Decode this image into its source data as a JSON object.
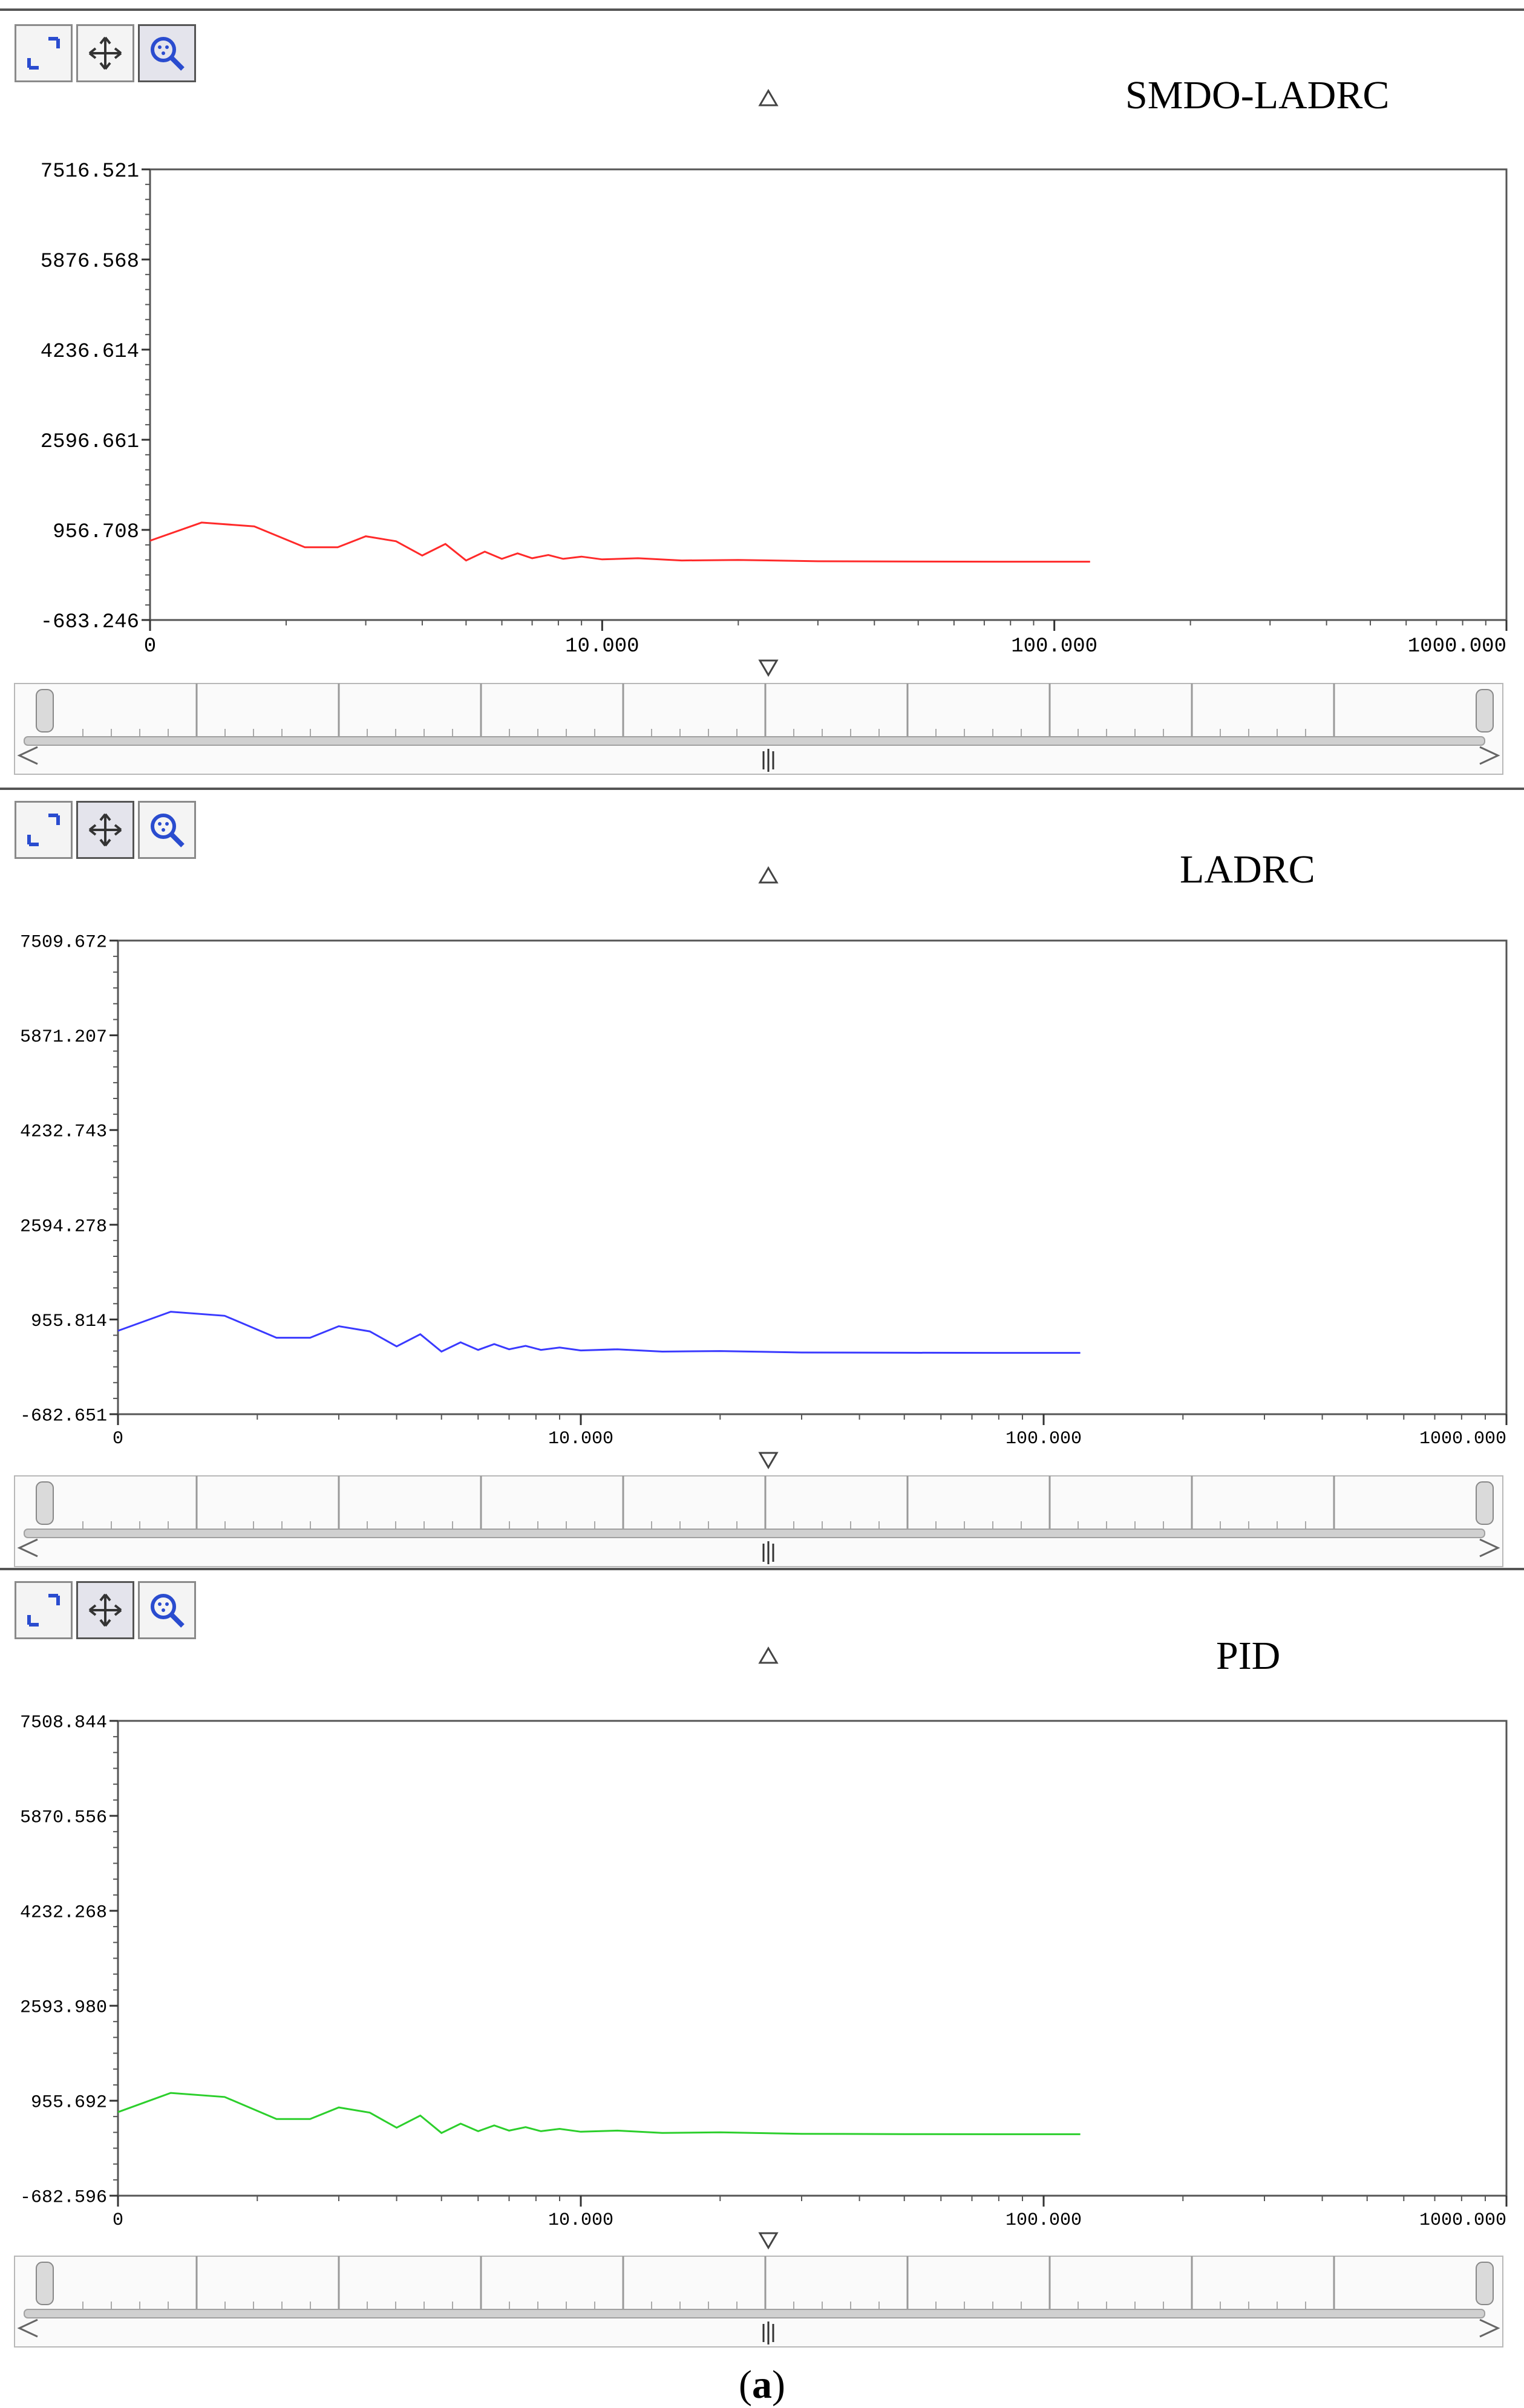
{
  "colors": {
    "smdo": "#ff2a2a",
    "ladrc": "#3a3aff",
    "pid": "#2ccf2c",
    "axis": "#000000",
    "grid": "#888888"
  },
  "panels": [
    {
      "title": "SMDO-LADRC",
      "ytick_labels": [
        "7516.521",
        "5876.568",
        "4236.614",
        "2596.661",
        "956.708",
        "-683.246"
      ],
      "xtick_labels": [
        "0",
        "10.000",
        "100.000",
        "1000.000"
      ],
      "tools": [
        "zoom-box-icon",
        "pan-move-icon",
        "zoom-magnifier-icon"
      ]
    },
    {
      "title": "LADRC",
      "ytick_labels": [
        "7509.672",
        "5871.207",
        "4232.743",
        "2594.278",
        "955.814",
        "-682.651"
      ],
      "xtick_labels": [
        "0",
        "10.000",
        "100.000",
        "1000.000"
      ],
      "tools": [
        "zoom-box-icon",
        "pan-move-icon",
        "zoom-magnifier-icon"
      ]
    },
    {
      "title": "PID",
      "ytick_labels": [
        "7508.844",
        "5870.556",
        "4232.268",
        "2593.980",
        "955.692",
        "-682.596"
      ],
      "xtick_labels": [
        "0",
        "10.000",
        "100.000",
        "1000.000"
      ],
      "tools": [
        "zoom-box-icon",
        "pan-move-icon",
        "zoom-magnifier-icon"
      ]
    }
  ],
  "caption": {
    "label": "a"
  },
  "chart_data": [
    {
      "type": "line",
      "title": "SMDO-LADRC",
      "x_scale": "log",
      "x_tick_labels": [
        "0",
        "10.000",
        "100.000",
        "1000.000"
      ],
      "xlim": [
        1,
        1000
      ],
      "ylim": [
        -683.246,
        7516.521
      ],
      "grid": false,
      "series": [
        {
          "color": "#ff2a2a",
          "x": [
            1,
            1.3,
            1.7,
            2.2,
            2.6,
            3.0,
            3.5,
            4.0,
            4.5,
            5.0,
            5.5,
            6.0,
            6.5,
            7.0,
            7.6,
            8.2,
            9.0,
            10,
            12,
            15,
            20,
            30,
            50,
            80,
            120
          ],
          "y": [
            760,
            1090,
            1020,
            640,
            640,
            840,
            750,
            490,
            700,
            400,
            560,
            430,
            530,
            440,
            500,
            430,
            470,
            420,
            440,
            400,
            410,
            385,
            380,
            378,
            378
          ]
        }
      ]
    },
    {
      "type": "line",
      "title": "LADRC",
      "x_scale": "log",
      "x_tick_labels": [
        "0",
        "10.000",
        "100.000",
        "1000.000"
      ],
      "xlim": [
        1,
        1000
      ],
      "ylim": [
        -682.651,
        7509.672
      ],
      "grid": false,
      "series": [
        {
          "color": "#3a3aff",
          "x": [
            1,
            1.3,
            1.7,
            2.2,
            2.6,
            3.0,
            3.5,
            4.0,
            4.5,
            5.0,
            5.5,
            6.0,
            6.5,
            7.0,
            7.6,
            8.2,
            9.0,
            10,
            12,
            15,
            20,
            30,
            50,
            80,
            120
          ],
          "y": [
            760,
            1090,
            1020,
            640,
            640,
            840,
            750,
            490,
            700,
            400,
            560,
            430,
            530,
            440,
            500,
            430,
            470,
            420,
            440,
            400,
            410,
            385,
            380,
            378,
            378
          ]
        }
      ]
    },
    {
      "type": "line",
      "title": "PID",
      "x_scale": "log",
      "x_tick_labels": [
        "0",
        "10.000",
        "100.000",
        "1000.000"
      ],
      "xlim": [
        1,
        1000
      ],
      "ylim": [
        -682.596,
        7508.844
      ],
      "grid": false,
      "series": [
        {
          "color": "#2ccf2c",
          "x": [
            1,
            1.3,
            1.7,
            2.2,
            2.6,
            3.0,
            3.5,
            4.0,
            4.5,
            5.0,
            5.5,
            6.0,
            6.5,
            7.0,
            7.6,
            8.2,
            9.0,
            10,
            12,
            15,
            20,
            30,
            50,
            80,
            120
          ],
          "y": [
            760,
            1090,
            1020,
            640,
            640,
            840,
            750,
            490,
            700,
            400,
            560,
            430,
            530,
            440,
            500,
            430,
            470,
            420,
            440,
            400,
            410,
            385,
            380,
            378,
            378
          ]
        }
      ]
    }
  ]
}
